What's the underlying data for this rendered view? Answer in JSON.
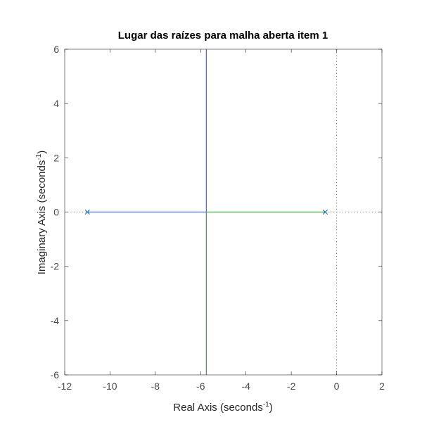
{
  "chart_data": {
    "type": "line",
    "title": "Lugar das raízes para malha aberta item 1",
    "xlabel": {
      "main": "Real Axis (seconds",
      "sup": "-1",
      "close": ")"
    },
    "ylabel": {
      "main": "Imaginary Axis (seconds",
      "sup": "-1",
      "close": ")"
    },
    "xlim": [
      -12,
      2
    ],
    "ylim": [
      -6,
      6
    ],
    "xticks": [
      -12,
      -10,
      -8,
      -6,
      -4,
      -2,
      0,
      2
    ],
    "yticks": [
      -6,
      -4,
      -2,
      0,
      2,
      4,
      6
    ],
    "xtick_labels": [
      "-12",
      "-10",
      "-8",
      "-6",
      "-4",
      "-2",
      "0",
      "2"
    ],
    "ytick_labels": [
      "-6",
      "-4",
      "-2",
      "0",
      "2",
      "4",
      "6"
    ],
    "grid": false,
    "poles": [
      {
        "x": -11,
        "y": 0
      },
      {
        "x": -0.5,
        "y": 0
      }
    ],
    "series": [
      {
        "color": "#4b5fe6",
        "x": [
          -11,
          -5.75,
          -5.75
        ],
        "y": [
          0,
          0,
          6
        ]
      },
      {
        "color": "#3aa13a",
        "x": [
          -0.5,
          -5.75,
          -5.75
        ],
        "y": [
          0,
          0,
          -6
        ]
      }
    ],
    "reference_lines": {
      "x": 0,
      "y": 0,
      "color": "#7f7f7f"
    },
    "pole_marker_color": "#1f77b4"
  }
}
